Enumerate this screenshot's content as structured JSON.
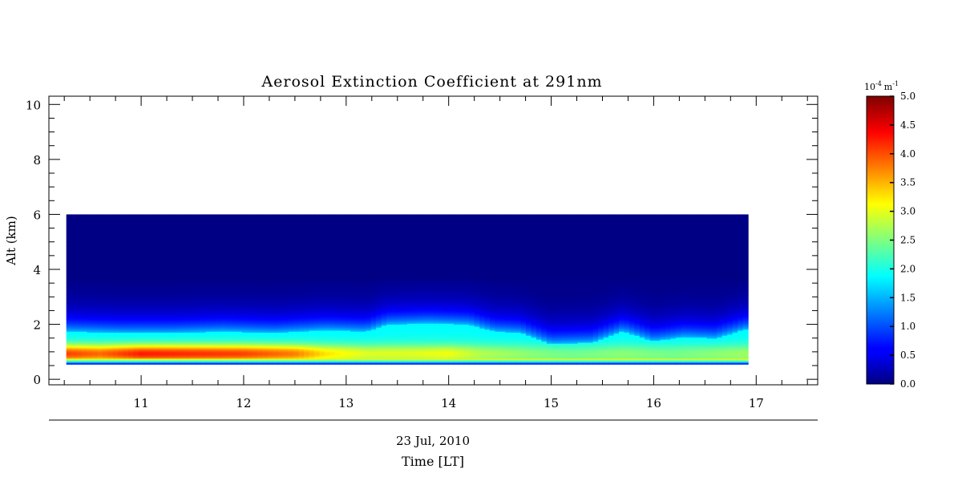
{
  "chart_data": {
    "type": "heatmap",
    "title": "Aerosol Extinction Coefficient at 291nm",
    "xlabel": "Time [LT]",
    "date_label": "23 Jul, 2010",
    "ylabel": "Alt (km)",
    "xlim": [
      10.1,
      17.6
    ],
    "ylim": [
      -0.2,
      10.3
    ],
    "x_ticks": [
      11,
      12,
      13,
      14,
      15,
      16,
      17
    ],
    "y_ticks": [
      0,
      2,
      4,
      6,
      8,
      10
    ],
    "data_extent": {
      "time": [
        10.27,
        16.92
      ],
      "altitude_km": [
        0.55,
        6.0
      ]
    },
    "colorscale": "jet",
    "colorbar": {
      "unit_base": "10",
      "unit_exp": "-4",
      "unit_m": "m",
      "unit_m_exp": "-1",
      "min": 0.0,
      "max": 5.0,
      "tick_values": [
        0.0,
        0.5,
        1.0,
        1.5,
        2.0,
        2.5,
        3.0,
        3.5,
        4.0,
        4.5,
        5.0
      ],
      "tick_labels": [
        "0.0",
        "0.5",
        "1.0",
        "1.5",
        "2.0",
        "2.5",
        "3.0",
        "3.5",
        "4.0",
        "4.5",
        "5.0"
      ]
    },
    "layer_top_km": {
      "times": [
        10.27,
        10.8,
        11.3,
        11.8,
        12.3,
        12.8,
        13.2,
        13.4,
        13.8,
        14.2,
        14.45,
        14.7,
        15.0,
        15.4,
        15.7,
        16.0,
        16.3,
        16.6,
        16.92
      ],
      "values": [
        1.75,
        1.7,
        1.7,
        1.75,
        1.7,
        1.8,
        1.75,
        2.0,
        2.05,
        2.0,
        1.75,
        1.7,
        1.3,
        1.35,
        1.75,
        1.4,
        1.55,
        1.5,
        1.85
      ]
    },
    "peak_extinction": {
      "times": [
        10.27,
        10.6,
        11.0,
        11.5,
        12.0,
        12.5,
        12.8,
        13.2,
        13.6,
        14.0,
        14.3,
        14.8,
        15.2,
        15.7,
        16.2,
        16.92
      ],
      "values": [
        4.1,
        3.9,
        4.3,
        4.2,
        4.1,
        3.8,
        3.3,
        3.0,
        3.0,
        3.1,
        2.8,
        2.6,
        2.5,
        2.6,
        2.5,
        2.7
      ]
    }
  }
}
